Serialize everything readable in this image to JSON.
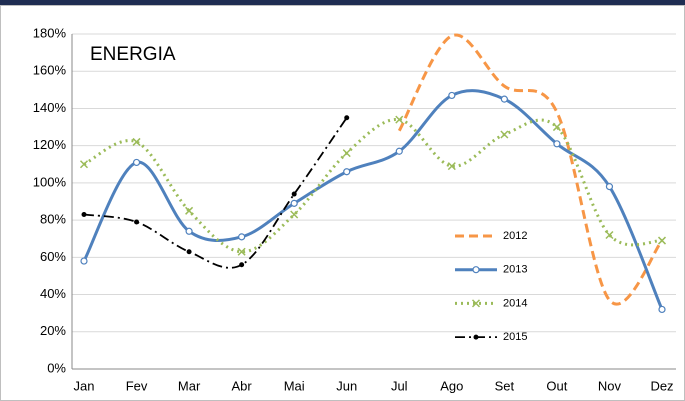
{
  "chart_data": {
    "type": "line",
    "title": "ENERGIA",
    "categories": [
      "Jan",
      "Fev",
      "Mar",
      "Abr",
      "Mai",
      "Jun",
      "Jul",
      "Ago",
      "Set",
      "Out",
      "Nov",
      "Dez"
    ],
    "series": [
      {
        "name": "2012",
        "color": "#f79646",
        "line_style": "dashed",
        "marker": "none",
        "values": [
          null,
          null,
          null,
          null,
          null,
          null,
          128,
          179,
          152,
          138,
          37,
          69
        ]
      },
      {
        "name": "2013",
        "color": "#4f81bd",
        "line_style": "solid",
        "marker": "circle",
        "values": [
          58,
          111,
          74,
          71,
          89,
          106,
          117,
          147,
          145,
          121,
          98,
          32
        ]
      },
      {
        "name": "2014",
        "color": "#9bbb59",
        "line_style": "dotted",
        "marker": "x",
        "values": [
          110,
          122,
          85,
          63,
          83,
          116,
          134,
          109,
          126,
          130,
          72,
          69
        ]
      },
      {
        "name": "2015",
        "color": "#000000",
        "line_style": "dashdot",
        "marker": "dot",
        "values": [
          83,
          79,
          63,
          56,
          94,
          135,
          null,
          null,
          null,
          null,
          null,
          null
        ]
      }
    ],
    "ylim": [
      0,
      180
    ],
    "yticks": [
      {
        "value": 0,
        "label": "0%"
      },
      {
        "value": 20,
        "label": "20%"
      },
      {
        "value": 40,
        "label": "40%"
      },
      {
        "value": 60,
        "label": "60%"
      },
      {
        "value": 80,
        "label": "80%"
      },
      {
        "value": 100,
        "label": "100%"
      },
      {
        "value": 120,
        "label": "120%"
      },
      {
        "value": 140,
        "label": "140%"
      },
      {
        "value": 160,
        "label": "160%"
      },
      {
        "value": 180,
        "label": "180%"
      }
    ],
    "grid": true,
    "smooth": true
  }
}
